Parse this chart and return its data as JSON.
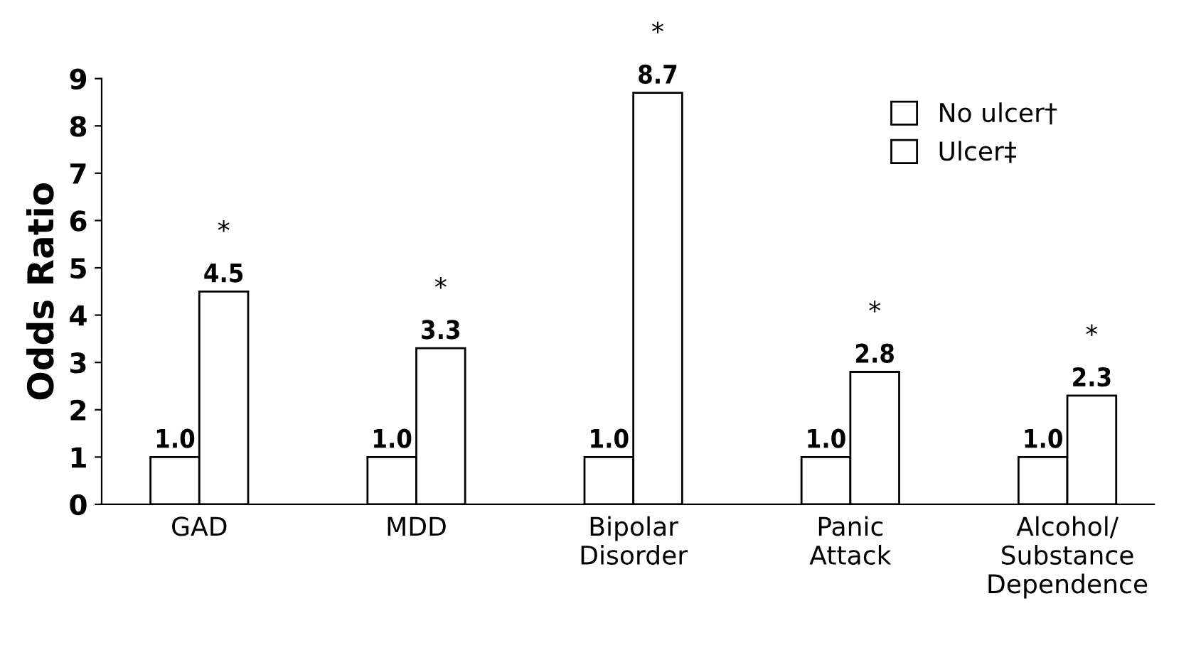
{
  "chart_data": {
    "type": "bar",
    "ylabel": "Odds Ratio",
    "categories": [
      "GAD",
      "MDD",
      "Bipolar\nDisorder",
      "Panic\nAttack",
      "Alcohol/\nSubstance\nDependence"
    ],
    "series": [
      {
        "name": "No ulcer†",
        "color": "#ffffff",
        "values": [
          1.0,
          1.0,
          1.0,
          1.0,
          1.0
        ],
        "value_labels": [
          "1.0",
          "1.0",
          "1.0",
          "1.0",
          "1.0"
        ]
      },
      {
        "name": "Ulcer‡",
        "color": "#ffffff",
        "values": [
          4.5,
          3.3,
          8.7,
          2.8,
          2.3
        ],
        "value_labels": [
          "4.5",
          "3.3",
          "8.7",
          "2.8",
          "2.3"
        ]
      }
    ],
    "ylim": [
      0,
      9
    ],
    "yticks": [
      0,
      1,
      2,
      3,
      4,
      5,
      6,
      7,
      8,
      9
    ],
    "grid": false,
    "legend": "top right",
    "annotations": [
      "*",
      "*",
      "*",
      "*",
      "*"
    ]
  }
}
